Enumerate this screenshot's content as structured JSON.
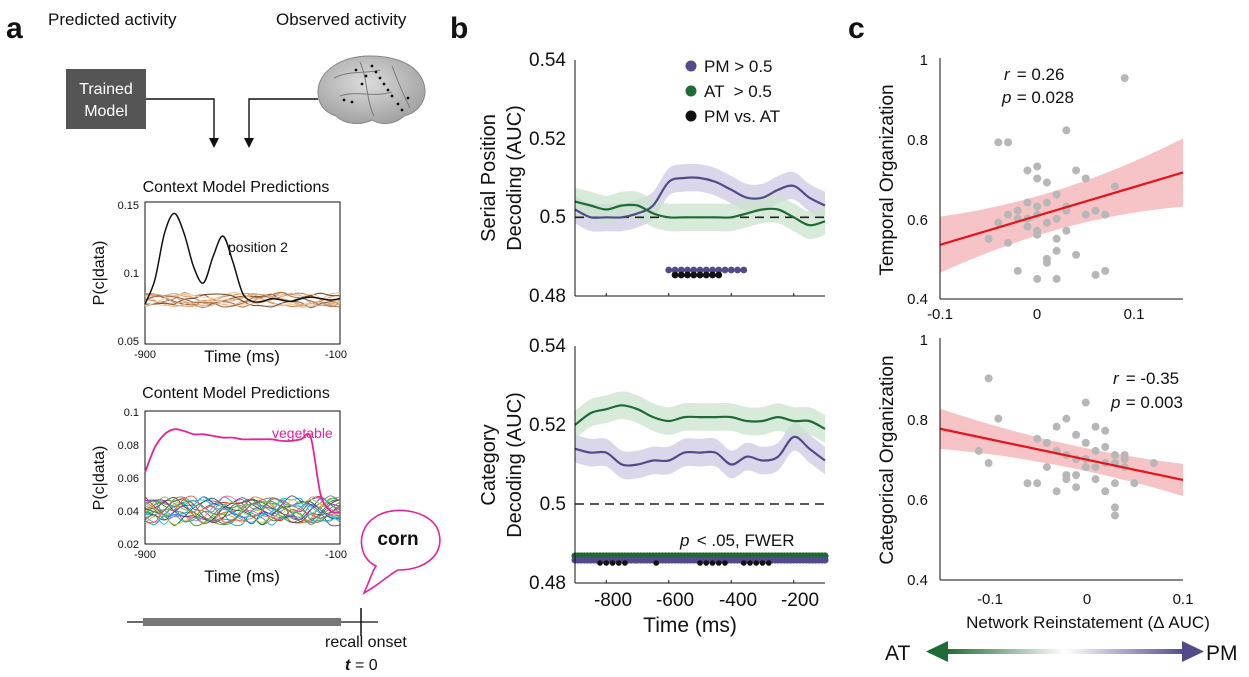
{
  "panel_letters": {
    "a": "a",
    "b": "b",
    "c": "c"
  },
  "colors": {
    "pm": "#524b8a",
    "at": "#1e6b34",
    "magenta": "#e2249e",
    "red": "#e8121a",
    "band": "#f4b5b8",
    "gray": "#b7b7b7",
    "box": "#555555"
  },
  "schematic": {
    "predicted_label": "Predicted activity",
    "observed_label": "Observed activity",
    "model_line1": "Trained",
    "model_line2": "Model",
    "callout": "corn",
    "recall_label": "recall onset",
    "t_label": "t",
    "t_eq": "= 0"
  },
  "chart_data": [
    {
      "id": "context",
      "type": "line",
      "title": "Context Model Predictions",
      "xlabel": "Time (ms)",
      "ylabel": "P(c|data)",
      "xlim": [
        -900,
        -100
      ],
      "ylim": [
        0.05,
        0.15
      ],
      "xticks": [
        "-900",
        "-100"
      ],
      "yticks": [
        "0.05",
        "0.1",
        "0.15"
      ],
      "annotation": "position 2",
      "series": [
        {
          "x": [
            -900,
            -860,
            -820,
            -780,
            -740,
            -700,
            -660,
            -620,
            -580,
            -540,
            -500,
            -460,
            -420,
            -380,
            -340,
            -300,
            -260,
            -220,
            -180,
            -140,
            -100
          ],
          "y": [
            0.078,
            0.095,
            0.128,
            0.142,
            0.128,
            0.104,
            0.093,
            0.112,
            0.126,
            0.108,
            0.086,
            0.08,
            0.08,
            0.082,
            0.081,
            0.08,
            0.082,
            0.083,
            0.082,
            0.081,
            0.082
          ]
        }
      ]
    },
    {
      "id": "content",
      "type": "line",
      "title": "Content Model Predictions",
      "xlabel": "Time (ms)",
      "ylabel": "P(c|data)",
      "xlim": [
        -900,
        -100
      ],
      "ylim": [
        0.02,
        0.1
      ],
      "xticks": [
        "-900",
        "-100"
      ],
      "yticks": [
        "0.02",
        "0.04",
        "0.06",
        "0.08",
        "0.1"
      ],
      "annotation": "vegetable",
      "series": [
        {
          "x": [
            -900,
            -860,
            -820,
            -780,
            -740,
            -700,
            -660,
            -620,
            -580,
            -540,
            -500,
            -460,
            -420,
            -380,
            -340,
            -300,
            -260,
            -220,
            -180,
            -140,
            -100
          ],
          "y": [
            0.063,
            0.078,
            0.086,
            0.089,
            0.088,
            0.086,
            0.086,
            0.085,
            0.084,
            0.084,
            0.083,
            0.083,
            0.083,
            0.083,
            0.082,
            0.082,
            0.083,
            0.084,
            0.05,
            0.04,
            0.039
          ]
        }
      ]
    },
    {
      "id": "serial",
      "type": "line",
      "ylabel_line1": "Serial Position",
      "ylabel_line2": "Decoding (AUC)",
      "xlim": [
        -900,
        -100
      ],
      "ylim": [
        0.48,
        0.54
      ],
      "yticks": [
        "0.48",
        "0.5",
        "0.52",
        "0.54"
      ],
      "chance": 0.5,
      "legend": [
        "PM > 0.5",
        "AT  > 0.5",
        "PM vs. AT"
      ],
      "series": [
        {
          "x": [
            -900,
            -850,
            -800,
            -750,
            -700,
            -650,
            -600,
            -550,
            -500,
            -450,
            -400,
            -350,
            -300,
            -250,
            -200,
            -150,
            -100
          ],
          "y": [
            0.502,
            0.5,
            0.5,
            0.5,
            0.501,
            0.503,
            0.509,
            0.51,
            0.51,
            0.509,
            0.507,
            0.505,
            0.505,
            0.507,
            0.508,
            0.505,
            0.503
          ],
          "band": 0.0035
        },
        {
          "x": [
            -900,
            -850,
            -800,
            -750,
            -700,
            -650,
            -600,
            -550,
            -500,
            -450,
            -400,
            -350,
            -300,
            -250,
            -200,
            -150,
            -100
          ],
          "y": [
            0.504,
            0.503,
            0.502,
            0.503,
            0.503,
            0.501,
            0.5,
            0.5,
            0.5,
            0.5,
            0.5,
            0.501,
            0.502,
            0.502,
            0.5,
            0.498,
            0.499
          ],
          "band": 0.0035
        }
      ],
      "sig_pm": [
        -600,
        -580,
        -560,
        -540,
        -520,
        -500,
        -480,
        -460,
        -440,
        -420,
        -400,
        -380,
        -360
      ],
      "sig_diff": [
        -580,
        -560,
        -540,
        -520,
        -500,
        -480,
        -460,
        -440
      ]
    },
    {
      "id": "category",
      "type": "line",
      "ylabel_line1": "Category",
      "ylabel_line2": "Decoding (AUC)",
      "xlabel": "Time (ms)",
      "xlim": [
        -900,
        -100
      ],
      "ylim": [
        0.48,
        0.54
      ],
      "xticks": [
        "-800",
        "-600",
        "-400",
        "-200"
      ],
      "yticks": [
        "0.48",
        "0.5",
        "0.52",
        "0.54"
      ],
      "chance": 0.5,
      "annotation_p": "p",
      "annotation_rest": " < .05, FWER",
      "series": [
        {
          "x": [
            -900,
            -850,
            -800,
            -750,
            -700,
            -650,
            -600,
            -550,
            -500,
            -450,
            -400,
            -350,
            -300,
            -250,
            -200,
            -150,
            -100
          ],
          "y": [
            0.514,
            0.513,
            0.513,
            0.51,
            0.51,
            0.511,
            0.511,
            0.513,
            0.513,
            0.513,
            0.51,
            0.512,
            0.511,
            0.512,
            0.517,
            0.514,
            0.511
          ],
          "band": 0.0035
        },
        {
          "x": [
            -900,
            -850,
            -800,
            -750,
            -700,
            -650,
            -600,
            -550,
            -500,
            -450,
            -400,
            -350,
            -300,
            -250,
            -200,
            -150,
            -100
          ],
          "y": [
            0.52,
            0.523,
            0.524,
            0.525,
            0.524,
            0.522,
            0.521,
            0.522,
            0.522,
            0.522,
            0.522,
            0.521,
            0.521,
            0.522,
            0.521,
            0.521,
            0.519
          ],
          "band": 0.0035
        }
      ],
      "sig_diff": [
        -820,
        -800,
        -780,
        -760,
        -740,
        -640,
        -500,
        -480,
        -460,
        -440,
        -420,
        -360,
        -340,
        -320,
        -300,
        -280
      ]
    },
    {
      "id": "temporal",
      "type": "scatter",
      "ylabel": "Temporal Organization",
      "xlim": [
        -0.1,
        0.15
      ],
      "ylim": [
        0.4,
        1.0
      ],
      "xticks": [
        "-0.1",
        "0",
        "0.1"
      ],
      "yticks": [
        "0.4",
        "0.6",
        "0.8",
        "1"
      ],
      "r_label": "r",
      "r_value": " = 0.26",
      "p_label": "p",
      "p_value": " = 0.028",
      "fit": {
        "x": [
          -0.1,
          0.15
        ],
        "y": [
          0.535,
          0.715
        ],
        "band_edge": [
          0.07,
          0.035,
          0.085
        ]
      },
      "points": [
        [
          -0.04,
          0.79
        ],
        [
          -0.03,
          0.79
        ],
        [
          0.03,
          0.82
        ],
        [
          0.09,
          0.95
        ],
        [
          -0.01,
          0.72
        ],
        [
          0.0,
          0.73
        ],
        [
          0.0,
          0.7
        ],
        [
          0.01,
          0.69
        ],
        [
          0.02,
          0.66
        ],
        [
          0.04,
          0.72
        ],
        [
          0.05,
          0.7
        ],
        [
          0.0,
          0.63
        ],
        [
          -0.01,
          0.64
        ],
        [
          0.01,
          0.64
        ],
        [
          -0.02,
          0.62
        ],
        [
          -0.03,
          0.61
        ],
        [
          -0.02,
          0.6
        ],
        [
          0.0,
          0.61
        ],
        [
          0.02,
          0.6
        ],
        [
          0.03,
          0.63
        ],
        [
          -0.01,
          0.58
        ],
        [
          0.0,
          0.57
        ],
        [
          0.0,
          0.56
        ],
        [
          0.02,
          0.55
        ],
        [
          0.01,
          0.5
        ],
        [
          -0.03,
          0.54
        ],
        [
          -0.05,
          0.55
        ],
        [
          -0.04,
          0.59
        ],
        [
          0.06,
          0.62
        ],
        [
          0.07,
          0.61
        ],
        [
          0.08,
          0.68
        ],
        [
          0.03,
          0.62
        ],
        [
          -0.01,
          0.6
        ],
        [
          0.01,
          0.59
        ],
        [
          0.02,
          0.52
        ],
        [
          0.04,
          0.51
        ],
        [
          0.01,
          0.49
        ],
        [
          -0.02,
          0.47
        ],
        [
          0.02,
          0.45
        ],
        [
          0.0,
          0.45
        ],
        [
          0.06,
          0.46
        ],
        [
          0.07,
          0.47
        ],
        [
          -0.04,
          0.59
        ],
        [
          0.05,
          0.61
        ],
        [
          0.03,
          0.57
        ]
      ]
    },
    {
      "id": "categorical",
      "type": "scatter",
      "ylabel": "Categorical Organization",
      "xlabel": "Network Reinstatement (Δ AUC)",
      "xlim": [
        -0.15,
        0.1
      ],
      "ylim": [
        0.4,
        1.0
      ],
      "xticks": [
        "-0.1",
        "0",
        "0.1"
      ],
      "yticks": [
        "0.4",
        "0.6",
        "0.8",
        "1"
      ],
      "r_label": "r",
      "r_value": " = -0.35",
      "p_label": "p",
      "p_value": " = 0.003",
      "fit": {
        "x": [
          -0.15,
          0.1
        ],
        "y": [
          0.775,
          0.648
        ],
        "band_edge": [
          0.05,
          0.02,
          0.04
        ]
      },
      "points": [
        [
          -0.1,
          0.9
        ],
        [
          -0.09,
          0.8
        ],
        [
          -0.11,
          0.72
        ],
        [
          -0.1,
          0.69
        ],
        [
          -0.05,
          0.75
        ],
        [
          -0.04,
          0.74
        ],
        [
          -0.03,
          0.78
        ],
        [
          -0.02,
          0.8
        ],
        [
          -0.01,
          0.76
        ],
        [
          0.0,
          0.84
        ],
        [
          0.01,
          0.78
        ],
        [
          0.02,
          0.77
        ],
        [
          -0.03,
          0.72
        ],
        [
          -0.02,
          0.71
        ],
        [
          -0.01,
          0.7
        ],
        [
          0.0,
          0.7
        ],
        [
          0.01,
          0.72
        ],
        [
          0.02,
          0.73
        ],
        [
          0.03,
          0.71
        ],
        [
          0.04,
          0.7
        ],
        [
          0.0,
          0.68
        ],
        [
          0.01,
          0.68
        ],
        [
          0.02,
          0.69
        ],
        [
          0.03,
          0.69
        ],
        [
          -0.01,
          0.66
        ],
        [
          -0.02,
          0.65
        ],
        [
          -0.04,
          0.68
        ],
        [
          -0.05,
          0.64
        ],
        [
          -0.06,
          0.64
        ],
        [
          -0.03,
          0.62
        ],
        [
          -0.01,
          0.63
        ],
        [
          0.02,
          0.62
        ],
        [
          0.03,
          0.64
        ],
        [
          0.04,
          0.68
        ],
        [
          0.05,
          0.64
        ],
        [
          0.03,
          0.58
        ],
        [
          0.03,
          0.56
        ],
        [
          0.07,
          0.69
        ],
        [
          0.0,
          0.74
        ],
        [
          0.01,
          0.65
        ],
        [
          -0.02,
          0.66
        ],
        [
          0.04,
          0.71
        ]
      ]
    }
  ],
  "axis_arrow": {
    "left": "AT",
    "right": "PM"
  }
}
